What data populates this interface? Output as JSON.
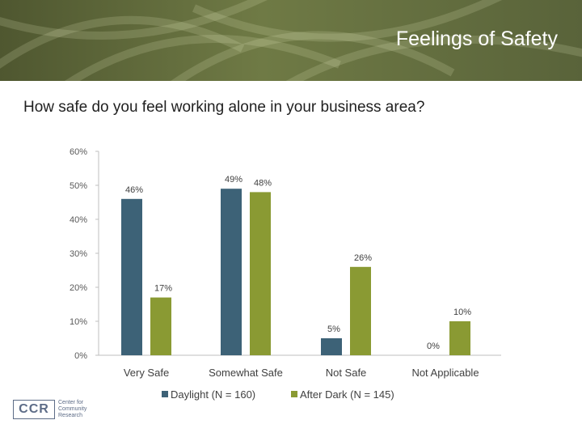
{
  "header": {
    "title": "Feelings of Safety",
    "bg_color": "#5c6637"
  },
  "question": "How safe do you feel working alone in your business area?",
  "logo": {
    "mark": "CCR",
    "lines": [
      "Center for",
      "Community",
      "Research"
    ]
  },
  "chart_data": {
    "type": "bar",
    "categories": [
      "Very Safe",
      "Somewhat Safe",
      "Not Safe",
      "Not Applicable"
    ],
    "series": [
      {
        "name": "Daylight (N = 160)",
        "values": [
          46,
          49,
          5,
          0
        ],
        "labels": [
          "46%",
          "49%",
          "5%",
          "0%"
        ],
        "color": "#3d6277"
      },
      {
        "name": "After Dark (N = 145)",
        "values": [
          17,
          48,
          26,
          10
        ],
        "labels": [
          "17%",
          "48%",
          "26%",
          "10%"
        ],
        "color": "#8a9a33"
      }
    ],
    "ylim": [
      0,
      60
    ],
    "yticks": [
      "0%",
      "10%",
      "20%",
      "30%",
      "40%",
      "50%",
      "60%"
    ],
    "grid": false,
    "legend": "bottom",
    "title": "",
    "xlabel": "",
    "ylabel": ""
  }
}
